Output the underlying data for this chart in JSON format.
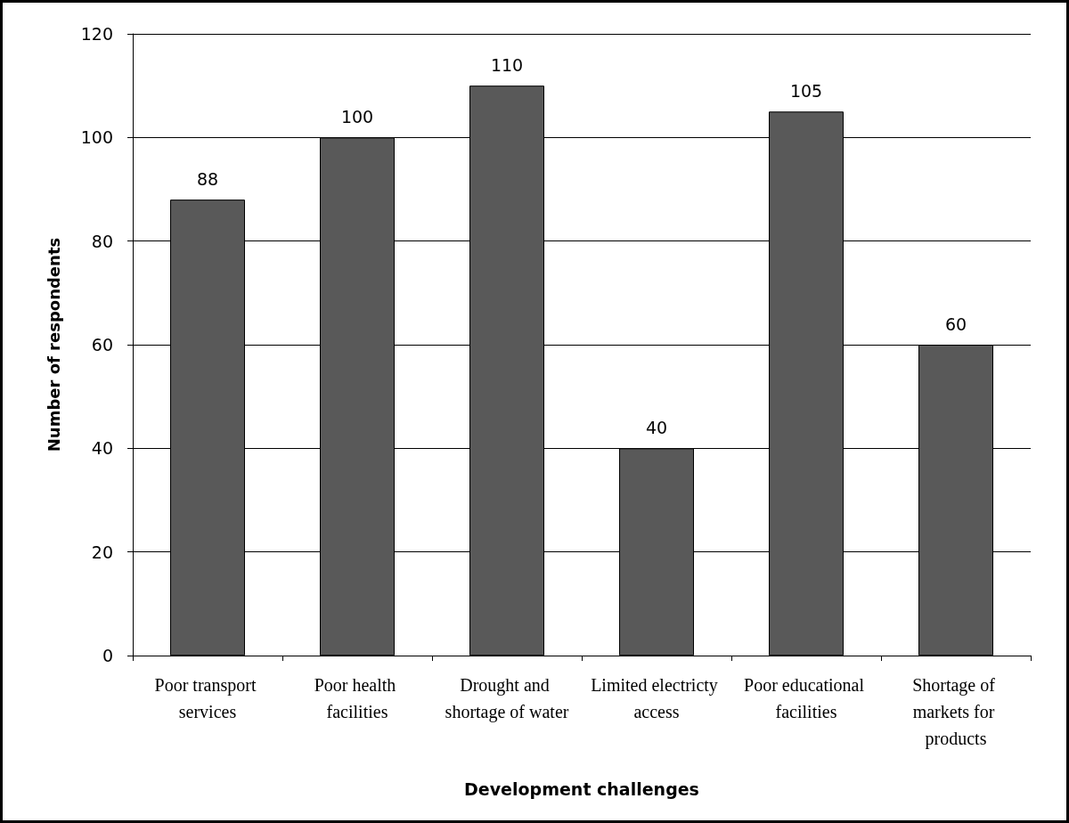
{
  "chart_data": {
    "type": "bar",
    "xlabel": "Development challenges",
    "ylabel": "Number of respondents",
    "categories": [
      "Poor transport services",
      "Poor health facilities",
      "Drought and shortage of water",
      "Limited electricty access",
      "Poor educational facilities",
      "Shortage of markets for products"
    ],
    "values": [
      88,
      100,
      110,
      40,
      105,
      60
    ],
    "color": "#595959",
    "ylim": [
      0,
      120
    ],
    "yticks": [
      0,
      20,
      40,
      60,
      80,
      100,
      120
    ],
    "grid": "y",
    "data_labels": true
  }
}
